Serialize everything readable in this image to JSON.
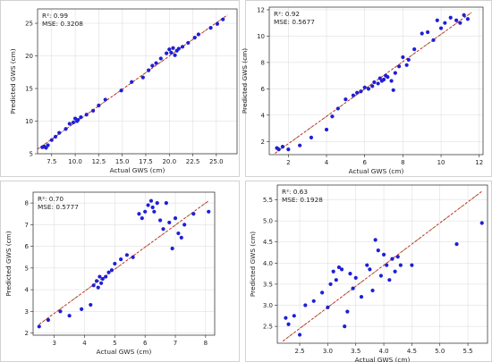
{
  "colors": {
    "points": "#1f1fd6",
    "fit_line": "#c21f1f"
  },
  "chart_data": [
    {
      "type": "scatter",
      "xlabel": "Actual GWS (cm)",
      "ylabel": "Predicted GWS (cm)",
      "annotations": [
        "R²: 0.99",
        "MSE: 0.3208"
      ],
      "xlim": [
        6,
        27.2
      ],
      "ylim": [
        5,
        27.2
      ],
      "xticks": [
        7.5,
        10.0,
        12.5,
        15.0,
        17.5,
        20.0,
        22.5,
        25.0
      ],
      "xtick_labels": [
        "7.5",
        "10.0",
        "12.5",
        "15.0",
        "17.5",
        "20.0",
        "22.5",
        "25.0"
      ],
      "yticks": [
        5,
        10,
        15,
        20,
        25
      ],
      "ytick_labels": [
        "5",
        "10",
        "15",
        "20",
        "25"
      ],
      "grid": true,
      "fit_line": [
        [
          6,
          5.7
        ],
        [
          26.2,
          26.3
        ]
      ],
      "x": [
        6.5,
        6.7,
        6.9,
        7.1,
        7.5,
        7.9,
        8.3,
        9.0,
        9.4,
        9.8,
        10.0,
        10.2,
        10.3,
        10.6,
        11.2,
        11.9,
        12.5,
        13.2,
        14.9,
        16.0,
        17.2,
        17.8,
        18.2,
        18.6,
        19.1,
        19.7,
        20.0,
        20.2,
        20.4,
        20.6,
        20.8,
        21.0,
        21.4,
        22.0,
        22.7,
        23.1,
        24.4,
        25.1,
        25.7
      ],
      "y": [
        6.0,
        6.1,
        5.9,
        6.3,
        7.1,
        7.6,
        8.2,
        8.8,
        9.6,
        9.8,
        10.4,
        10.0,
        10.2,
        10.6,
        11.0,
        11.6,
        12.4,
        13.3,
        14.7,
        16.0,
        16.7,
        17.8,
        18.5,
        18.9,
        19.6,
        20.4,
        21.0,
        20.5,
        21.2,
        20.1,
        20.8,
        21.1,
        21.4,
        22.0,
        22.8,
        23.3,
        24.3,
        24.9,
        25.6
      ]
    },
    {
      "type": "scatter",
      "xlabel": "Actual GWS (cm)",
      "ylabel": "Predicted GWS (cm)",
      "annotations": [
        "R²: 0.92",
        "MSE: 0.5677"
      ],
      "xlim": [
        1,
        12.2
      ],
      "ylim": [
        1,
        12.2
      ],
      "xticks": [
        2,
        4,
        6,
        8,
        10,
        12
      ],
      "xtick_labels": [
        "2",
        "4",
        "6",
        "8",
        "10",
        "12"
      ],
      "yticks": [
        2,
        4,
        6,
        8,
        10,
        12
      ],
      "ytick_labels": [
        "2",
        "4",
        "6",
        "8",
        "10",
        "12"
      ],
      "grid": true,
      "fit_line": [
        [
          1.3,
          1.1
        ],
        [
          11.6,
          11.8
        ]
      ],
      "x": [
        1.4,
        1.5,
        1.7,
        2.0,
        2.6,
        3.2,
        4.0,
        4.3,
        4.6,
        5.0,
        5.4,
        5.6,
        5.8,
        6.0,
        6.2,
        6.4,
        6.5,
        6.7,
        6.8,
        6.9,
        7.0,
        7.1,
        7.2,
        7.4,
        7.5,
        7.6,
        7.8,
        8.0,
        8.2,
        8.3,
        8.6,
        9.0,
        9.3,
        9.6,
        9.8,
        10.0,
        10.2,
        10.5,
        10.8,
        11.0,
        11.2,
        11.4
      ],
      "y": [
        1.5,
        1.4,
        1.6,
        1.4,
        1.7,
        2.3,
        2.9,
        3.9,
        4.5,
        5.2,
        5.5,
        5.7,
        5.8,
        6.1,
        6.0,
        6.2,
        6.5,
        6.4,
        6.8,
        6.6,
        6.7,
        7.0,
        6.9,
        6.6,
        5.9,
        7.2,
        7.7,
        8.4,
        7.8,
        8.2,
        9.0,
        10.2,
        10.3,
        9.7,
        11.2,
        10.6,
        11.0,
        11.4,
        11.2,
        11.0,
        11.6,
        11.3
      ]
    },
    {
      "type": "scatter",
      "xlabel": "Actual GWS (cm)",
      "ylabel": "Predicted GWS (cm)",
      "annotations": [
        "R²: 0.70",
        "MSE: 0.5777"
      ],
      "xlim": [
        2.3,
        8.3
      ],
      "ylim": [
        1.9,
        8.5
      ],
      "xticks": [
        3,
        4,
        5,
        6,
        7,
        8
      ],
      "xtick_labels": [
        "3",
        "4",
        "5",
        "6",
        "7",
        "8"
      ],
      "yticks": [
        2,
        3,
        4,
        5,
        6,
        7,
        8
      ],
      "ytick_labels": [
        "2",
        "3",
        "4",
        "5",
        "6",
        "7",
        "8"
      ],
      "grid": true,
      "fit_line": [
        [
          2.5,
          2.4
        ],
        [
          8.1,
          8.1
        ]
      ],
      "x": [
        2.5,
        2.8,
        3.2,
        3.5,
        3.9,
        4.2,
        4.3,
        4.4,
        4.45,
        4.5,
        4.55,
        4.6,
        4.7,
        4.8,
        4.9,
        5.0,
        5.2,
        5.4,
        5.6,
        5.8,
        5.9,
        6.0,
        6.1,
        6.2,
        6.25,
        6.3,
        6.4,
        6.5,
        6.6,
        6.7,
        6.8,
        6.9,
        7.0,
        7.1,
        7.2,
        7.3,
        7.6,
        8.1
      ],
      "y": [
        2.3,
        2.6,
        3.0,
        2.8,
        3.1,
        3.3,
        4.2,
        4.4,
        4.1,
        4.6,
        4.3,
        4.5,
        4.6,
        4.8,
        4.9,
        5.2,
        5.4,
        5.6,
        5.5,
        7.5,
        7.3,
        7.6,
        7.9,
        8.1,
        7.8,
        7.6,
        8.0,
        7.2,
        6.8,
        8.0,
        7.1,
        5.9,
        7.3,
        6.6,
        6.4,
        7.0,
        7.5,
        7.6
      ]
    },
    {
      "type": "scatter",
      "xlabel": "Actual GWS (cm)",
      "ylabel": "Predicted GWS (cm)",
      "annotations": [
        "R²: 0.63",
        "MSE: 0.1928"
      ],
      "xlim": [
        2.1,
        5.85
      ],
      "ylim": [
        2.1,
        5.85
      ],
      "xticks": [
        2.5,
        3.0,
        3.5,
        4.0,
        4.5,
        5.0,
        5.5
      ],
      "xtick_labels": [
        "2.5",
        "3.0",
        "3.5",
        "4.0",
        "4.5",
        "5.0",
        "5.5"
      ],
      "yticks": [
        2.5,
        3.0,
        3.5,
        4.0,
        4.5,
        5.0,
        5.5
      ],
      "ytick_labels": [
        "2.5",
        "3.0",
        "3.5",
        "4.0",
        "4.5",
        "5.0",
        "5.5"
      ],
      "grid": true,
      "fit_line": [
        [
          2.2,
          2.15
        ],
        [
          5.75,
          5.7
        ]
      ],
      "x": [
        2.25,
        2.3,
        2.4,
        2.5,
        2.6,
        2.75,
        2.9,
        3.0,
        3.05,
        3.1,
        3.15,
        3.2,
        3.25,
        3.3,
        3.35,
        3.4,
        3.45,
        3.5,
        3.6,
        3.7,
        3.75,
        3.8,
        3.85,
        3.9,
        3.95,
        4.0,
        4.05,
        4.1,
        4.15,
        4.2,
        4.25,
        4.3,
        4.5,
        5.3,
        5.75
      ],
      "y": [
        2.7,
        2.55,
        2.75,
        2.3,
        3.0,
        3.1,
        3.3,
        2.95,
        3.5,
        3.8,
        3.6,
        3.9,
        3.85,
        2.5,
        2.85,
        3.75,
        3.4,
        3.65,
        3.2,
        3.95,
        3.85,
        3.35,
        4.55,
        4.3,
        3.7,
        4.2,
        3.95,
        3.6,
        4.1,
        3.8,
        4.15,
        3.95,
        3.95,
        4.45,
        4.95
      ]
    }
  ]
}
